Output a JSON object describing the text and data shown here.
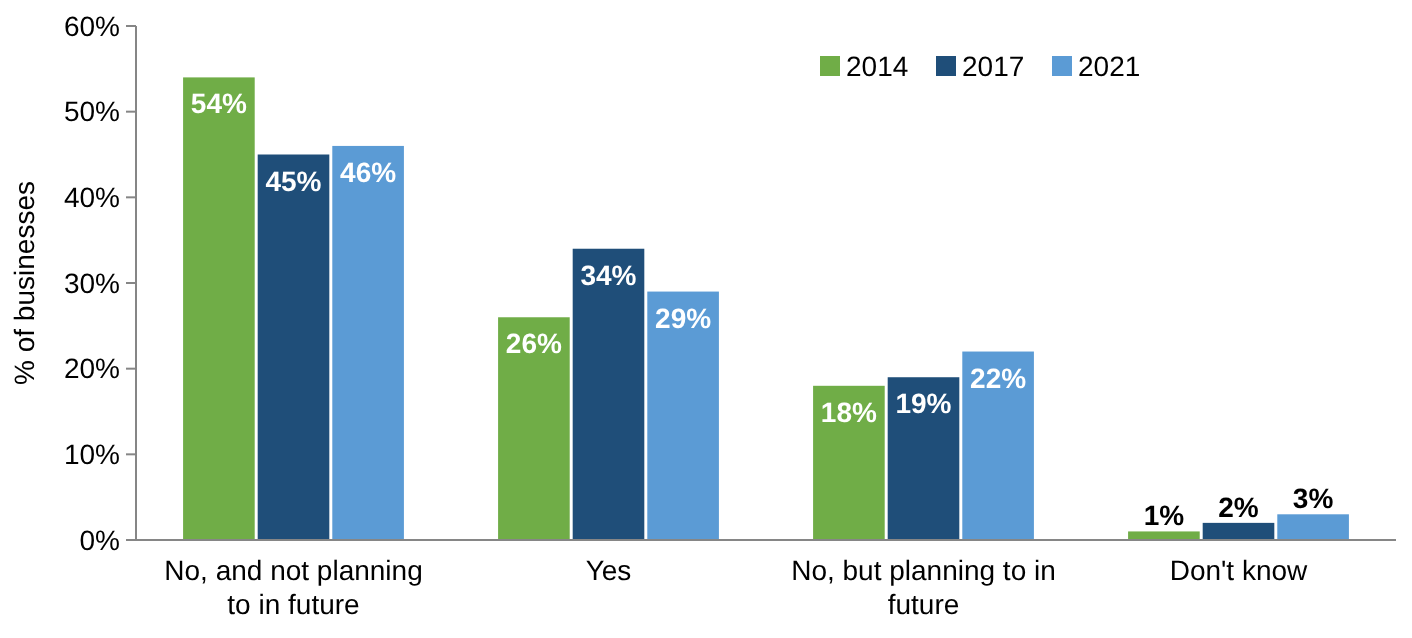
{
  "chart_data": {
    "type": "bar",
    "ylabel": "% of businesses",
    "categories": [
      "No, and not planning to in future",
      "Yes",
      "No, but planning to in future",
      "Don't know"
    ],
    "series": [
      {
        "name": "2014",
        "color": "#70ad47",
        "values": [
          54,
          26,
          18,
          1
        ],
        "value_labels": [
          "54%",
          "26%",
          "18%",
          "1%"
        ]
      },
      {
        "name": "2017",
        "color": "#1f4e79",
        "values": [
          45,
          34,
          19,
          2
        ],
        "value_labels": [
          "45%",
          "34%",
          "19%",
          "2%"
        ]
      },
      {
        "name": "2021",
        "color": "#5b9bd5",
        "values": [
          46,
          29,
          22,
          3
        ],
        "value_labels": [
          "46%",
          "29%",
          "22%",
          "3%"
        ]
      }
    ],
    "ylim": [
      0,
      60
    ],
    "yticks": [
      {
        "value": 0,
        "label": "0%"
      },
      {
        "value": 10,
        "label": "10%"
      },
      {
        "value": 20,
        "label": "20%"
      },
      {
        "value": 30,
        "label": "30%"
      },
      {
        "value": 40,
        "label": "40%"
      },
      {
        "value": 50,
        "label": "50%"
      },
      {
        "value": 60,
        "label": "60%"
      }
    ],
    "grid": false,
    "legend": "top right"
  }
}
